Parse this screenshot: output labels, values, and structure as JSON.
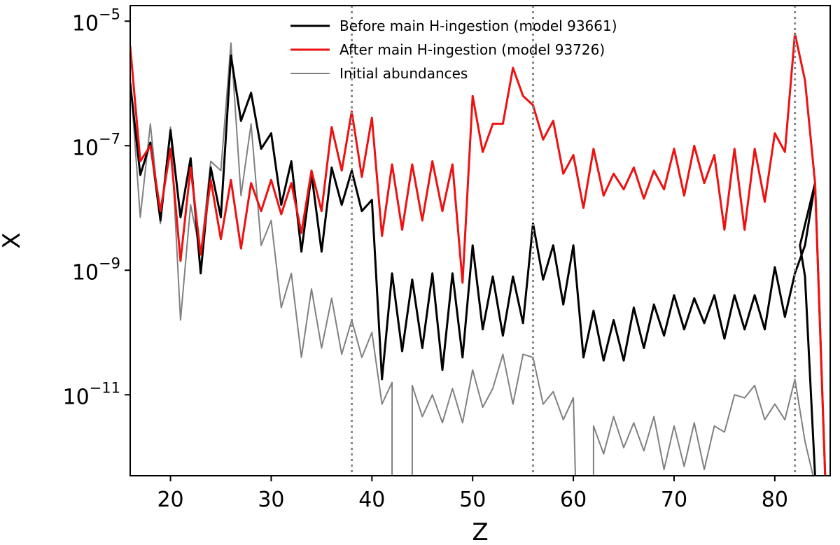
{
  "chart_data": {
    "type": "line",
    "title": "",
    "xlabel": "Z",
    "ylabel": "X",
    "xlim": [
      16,
      85.5
    ],
    "ylim_log10": [
      -12.3,
      -4.75
    ],
    "xticks": [
      20,
      30,
      40,
      50,
      60,
      70,
      80
    ],
    "yticks": [
      {
        "value": -5,
        "base": "10",
        "exp": "−5"
      },
      {
        "value": -7,
        "base": "10",
        "exp": "−7"
      },
      {
        "value": -9,
        "base": "10",
        "exp": "−9"
      },
      {
        "value": -11,
        "base": "10",
        "exp": "−11"
      }
    ],
    "grid": false,
    "legend_position": "top-center",
    "vlines": [
      38,
      56,
      82
    ],
    "series": [
      {
        "name": "Before main H-ingestion (model 93661)",
        "color": "#000000",
        "width": 3,
        "x": [
          16,
          17,
          18,
          19,
          20,
          21,
          22,
          23,
          24,
          25,
          26,
          27,
          28,
          29,
          30,
          31,
          32,
          33,
          34,
          35,
          36,
          37,
          38,
          39,
          40,
          41,
          42,
          43,
          44,
          45,
          46,
          47,
          48,
          49,
          50,
          51,
          52,
          53,
          54,
          55,
          56,
          57,
          58,
          59,
          60,
          61,
          62,
          63,
          64,
          65,
          66,
          67,
          68,
          69,
          70,
          71,
          72,
          73,
          74,
          75,
          76,
          77,
          78,
          79,
          80,
          81,
          82,
          83,
          84
        ],
        "log10": [
          -6.0,
          -7.47,
          -6.95,
          -8.2,
          -6.75,
          -8.15,
          -7.2,
          -9.05,
          -7.35,
          -8.15,
          -5.55,
          -6.6,
          -6.15,
          -7.05,
          -6.8,
          -7.95,
          -7.25,
          -8.7,
          -7.45,
          -8.7,
          -7.35,
          -7.95,
          -7.4,
          -8.05,
          -7.87,
          -10.75,
          -9.05,
          -10.3,
          -9.15,
          -10.25,
          -9.05,
          -10.6,
          -9.05,
          -10.4,
          -8.6,
          -9.95,
          -9.1,
          -10.05,
          -9.1,
          -9.85,
          -8.25,
          -9.15,
          -8.6,
          -9.55,
          -8.6,
          -10.4,
          -9.65,
          -10.45,
          -9.8,
          -10.45,
          -9.6,
          -10.25,
          -9.55,
          -10.05,
          -9.4,
          -9.95,
          -9.45,
          -9.85,
          -9.4,
          -10.1,
          -9.4,
          -9.95,
          -9.4,
          -9.95,
          -8.95,
          -9.75,
          -9.05,
          -8.6,
          -7.6
        ],
        "extra_points": [
          [
            82.5,
            -8.6
          ],
          [
            83,
            -9.1
          ],
          [
            83.5,
            -10.7
          ],
          [
            84,
            -12.3
          ]
        ]
      },
      {
        "name": "After main H-ingestion (model 93726)",
        "color": "#ee1111",
        "width": 3,
        "x": [
          16,
          17,
          18,
          19,
          20,
          21,
          22,
          23,
          24,
          25,
          26,
          27,
          28,
          29,
          30,
          31,
          32,
          33,
          34,
          35,
          36,
          37,
          38,
          39,
          40,
          41,
          42,
          43,
          44,
          45,
          46,
          47,
          48,
          49,
          50,
          51,
          52,
          53,
          54,
          55,
          56,
          57,
          58,
          59,
          60,
          61,
          62,
          63,
          64,
          65,
          66,
          67,
          68,
          69,
          70,
          71,
          72,
          73,
          74,
          75,
          76,
          77,
          78,
          79,
          80,
          81,
          82,
          83,
          84,
          85
        ],
        "log10": [
          -5.4,
          -7.25,
          -7.0,
          -8.05,
          -7.05,
          -8.85,
          -7.35,
          -8.75,
          -7.55,
          -8.5,
          -7.55,
          -8.65,
          -7.6,
          -8.05,
          -7.55,
          -8.1,
          -7.6,
          -8.4,
          -7.4,
          -8.05,
          -6.7,
          -7.4,
          -6.45,
          -7.5,
          -6.55,
          -8.45,
          -7.3,
          -8.35,
          -7.3,
          -8.2,
          -7.25,
          -8.05,
          -7.3,
          -9.2,
          -6.2,
          -7.1,
          -6.65,
          -6.65,
          -5.75,
          -6.2,
          -6.35,
          -6.9,
          -6.6,
          -7.45,
          -7.15,
          -8.0,
          -7.05,
          -7.8,
          -7.45,
          -7.7,
          -7.35,
          -7.85,
          -7.4,
          -7.7,
          -7.05,
          -7.8,
          -7.0,
          -7.6,
          -7.15,
          -8.35,
          -7.05,
          -8.35,
          -7.05,
          -7.9,
          -6.8,
          -7.1,
          -5.2,
          -5.95,
          -7.6,
          -12.3
        ],
        "extra_points": [
          [
            84,
            -7.6
          ],
          [
            85,
            -12.3
          ]
        ]
      },
      {
        "name": "Initial abundances",
        "color": "#808080",
        "width": 2,
        "x": [
          16,
          17,
          18,
          19,
          20,
          21,
          22,
          23,
          24,
          25,
          26,
          27,
          28,
          29,
          30,
          31,
          32,
          33,
          34,
          35,
          36,
          37,
          38,
          39,
          40,
          41,
          42
        ],
        "log10": [
          -5.9,
          -8.15,
          -6.65,
          -8.25,
          -6.7,
          -9.8,
          -7.95,
          -8.75,
          -7.25,
          -7.4,
          -5.35,
          -7.8,
          -6.65,
          -8.6,
          -8.2,
          -9.6,
          -9.05,
          -10.4,
          -9.3,
          -10.25,
          -9.45,
          -10.35,
          -9.8,
          -10.4,
          -10.0,
          -11.15,
          -10.8
        ],
        "segments": [
          [
            [
              16,
              -5.9
            ],
            [
              17,
              -8.15
            ],
            [
              18,
              -6.65
            ],
            [
              19,
              -8.25
            ],
            [
              20,
              -6.7
            ],
            [
              21,
              -9.8
            ],
            [
              22,
              -7.95
            ],
            [
              23,
              -8.75
            ],
            [
              24,
              -7.25
            ],
            [
              25,
              -7.4
            ],
            [
              26,
              -5.35
            ],
            [
              27,
              -7.8
            ],
            [
              28,
              -6.65
            ],
            [
              29,
              -8.6
            ],
            [
              30,
              -8.2
            ],
            [
              31,
              -9.6
            ],
            [
              32,
              -9.05
            ],
            [
              33,
              -10.4
            ],
            [
              34,
              -9.3
            ],
            [
              35,
              -10.25
            ],
            [
              36,
              -9.45
            ],
            [
              37,
              -10.35
            ],
            [
              38,
              -9.8
            ],
            [
              39,
              -10.4
            ],
            [
              40,
              -10.0
            ],
            [
              41,
              -11.15
            ],
            [
              42,
              -10.8
            ],
            [
              42,
              -12.3
            ]
          ],
          [
            [
              44,
              -12.3
            ],
            [
              44,
              -10.85
            ],
            [
              45,
              -11.35
            ],
            [
              46,
              -11.0
            ],
            [
              47,
              -11.45
            ],
            [
              48,
              -10.9
            ],
            [
              49,
              -11.45
            ],
            [
              50,
              -10.6
            ],
            [
              51,
              -11.2
            ],
            [
              52,
              -10.9
            ],
            [
              53,
              -10.35
            ],
            [
              54,
              -11.15
            ],
            [
              55,
              -10.35
            ],
            [
              56,
              -10.4
            ],
            [
              57,
              -11.15
            ],
            [
              58,
              -10.95
            ],
            [
              59,
              -11.4
            ],
            [
              60,
              -11.05
            ],
            [
              60.2,
              -12.3
            ]
          ],
          [
            [
              62,
              -12.3
            ],
            [
              62,
              -11.5
            ],
            [
              63,
              -11.95
            ],
            [
              64,
              -11.35
            ],
            [
              65,
              -11.85
            ],
            [
              66,
              -11.45
            ],
            [
              67,
              -11.9
            ],
            [
              68,
              -11.35
            ],
            [
              69,
              -12.2
            ],
            [
              70,
              -11.5
            ],
            [
              71,
              -12.15
            ],
            [
              72,
              -11.45
            ],
            [
              73,
              -12.2
            ],
            [
              74,
              -11.5
            ],
            [
              75,
              -11.6
            ],
            [
              76,
              -11.0
            ],
            [
              77,
              -11.05
            ],
            [
              78,
              -10.85
            ],
            [
              79,
              -11.4
            ],
            [
              80,
              -11.15
            ],
            [
              81,
              -11.4
            ],
            [
              82,
              -10.75
            ],
            [
              83,
              -11.75
            ],
            [
              83.8,
              -12.3
            ]
          ]
        ]
      }
    ]
  }
}
